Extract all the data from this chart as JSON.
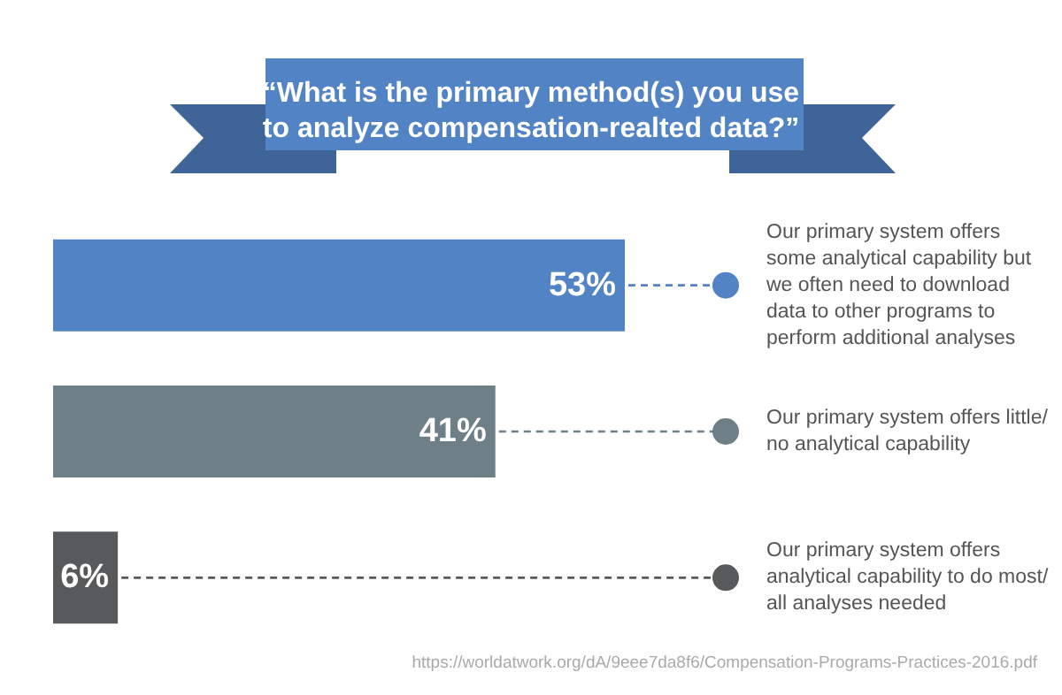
{
  "chart_data": {
    "type": "bar",
    "orientation": "horizontal",
    "title": "“What is the primary method(s) you use\nto analyze compensation-realted data?”",
    "categories": [
      "Our primary system offers some analytical capability but we often need to download data to other programs to perform additional analyses",
      "Our primary system offers little/no analytical capability",
      "Our primary system offers analytical capability to do most/all analyses needed"
    ],
    "values": [
      53,
      41,
      6
    ],
    "value_labels": [
      "53%",
      "41%",
      "6%"
    ],
    "colors": [
      "#5283c4",
      "#6e7f87",
      "#58595b"
    ],
    "annotations": [
      "https://worldatwork.org/dA/9eee7da8f6/Compensation-Programs-Practices-2016.pdf"
    ]
  }
}
